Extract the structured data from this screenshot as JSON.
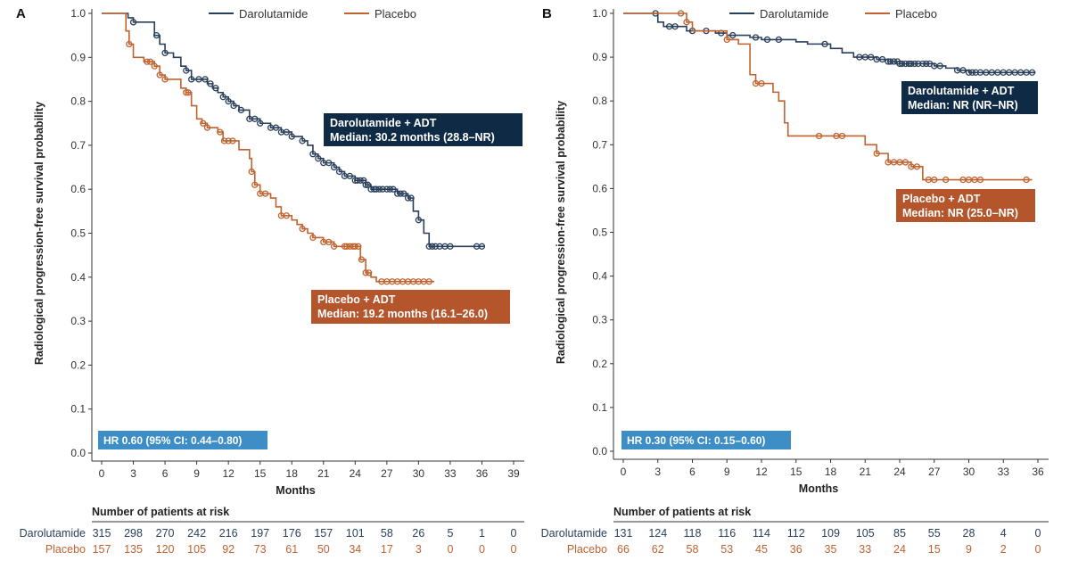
{
  "colors": {
    "darolutamide": "#2a3f5a",
    "placebo": "#c0622f",
    "dark_box": "#0f2a45",
    "placebo_box": "#b4552b",
    "hr_box": "#3d8dc7",
    "axis": "#333333"
  },
  "common": {
    "ylabel": "Radiological progression-free survival probability",
    "xlabel": "Months",
    "risk_header": "Number of patients at risk",
    "legend": [
      {
        "label": "Darolutamide",
        "series": "darolutamide"
      },
      {
        "label": "Placebo",
        "series": "placebo"
      }
    ],
    "yticks": [
      0,
      0.1,
      0.2,
      0.3,
      0.4,
      0.5,
      0.6,
      0.7,
      0.8,
      0.9,
      1.0
    ],
    "ytick_labels": [
      "0.0",
      "0.1",
      "0.2",
      "0.3",
      "0.4",
      "0.5",
      "0.6",
      "0.7",
      "0.8",
      "0.9",
      "1.0"
    ]
  },
  "chart_data": [
    {
      "type": "line",
      "subtype": "kaplan-meier step",
      "panel_label": "A",
      "xlabel": "Months",
      "ylabel": "Radiological progression-free survival probability",
      "xlim": [
        0,
        39
      ],
      "ylim": [
        0,
        1.0
      ],
      "xticks": [
        0,
        3,
        6,
        9,
        12,
        15,
        18,
        21,
        24,
        27,
        30,
        33,
        36,
        39
      ],
      "legend_position": "top-center",
      "series": [
        {
          "name": "Darolutamide",
          "steps": [
            [
              0,
              1.0
            ],
            [
              2.5,
              0.99
            ],
            [
              3,
              0.98
            ],
            [
              5,
              0.95
            ],
            [
              5.5,
              0.93
            ],
            [
              6,
              0.91
            ],
            [
              6.8,
              0.9
            ],
            [
              7.5,
              0.88
            ],
            [
              8,
              0.87
            ],
            [
              8.5,
              0.85
            ],
            [
              9,
              0.85
            ],
            [
              10,
              0.84
            ],
            [
              10.5,
              0.83
            ],
            [
              11,
              0.82
            ],
            [
              11.5,
              0.81
            ],
            [
              12,
              0.8
            ],
            [
              12.5,
              0.79
            ],
            [
              13,
              0.78
            ],
            [
              14,
              0.76
            ],
            [
              15,
              0.75
            ],
            [
              16,
              0.74
            ],
            [
              17,
              0.73
            ],
            [
              18,
              0.72
            ],
            [
              19,
              0.71
            ],
            [
              19.5,
              0.7
            ],
            [
              20,
              0.68
            ],
            [
              20.5,
              0.67
            ],
            [
              21,
              0.66
            ],
            [
              22,
              0.65
            ],
            [
              22.5,
              0.64
            ],
            [
              23,
              0.63
            ],
            [
              24,
              0.62
            ],
            [
              25,
              0.61
            ],
            [
              25.5,
              0.6
            ],
            [
              28,
              0.59
            ],
            [
              29,
              0.58
            ],
            [
              29.5,
              0.55
            ],
            [
              30,
              0.53
            ],
            [
              30.5,
              0.5
            ],
            [
              31,
              0.47
            ]
          ],
          "end": 36.2,
          "censor": [
            3,
            5.2,
            6,
            8,
            8.5,
            9.2,
            9.8,
            10.3,
            10.8,
            11.5,
            12,
            12.5,
            13.2,
            14,
            14.5,
            15,
            16,
            16.5,
            17,
            17.5,
            18,
            19,
            20,
            20.5,
            21,
            21.5,
            22,
            22.5,
            23,
            23.5,
            24,
            24.2,
            24.5,
            24.8,
            25,
            25.2,
            25.5,
            25.8,
            26,
            26.3,
            26.6,
            27,
            27.3,
            27.6,
            28,
            28.3,
            28.6,
            29,
            29.3,
            30,
            31,
            31.3,
            31.6,
            32,
            32.5,
            33,
            35.5,
            36
          ]
        },
        {
          "name": "Placebo",
          "steps": [
            [
              0,
              1.0
            ],
            [
              2.3,
              0.96
            ],
            [
              2.6,
              0.93
            ],
            [
              3,
              0.9
            ],
            [
              4,
              0.89
            ],
            [
              5,
              0.88
            ],
            [
              5.5,
              0.86
            ],
            [
              6,
              0.85
            ],
            [
              7.5,
              0.83
            ],
            [
              8,
              0.82
            ],
            [
              8.5,
              0.79
            ],
            [
              9,
              0.76
            ],
            [
              9.5,
              0.75
            ],
            [
              10,
              0.74
            ],
            [
              11,
              0.73
            ],
            [
              11.5,
              0.71
            ],
            [
              12,
              0.71
            ],
            [
              13,
              0.69
            ],
            [
              14,
              0.67
            ],
            [
              14.2,
              0.64
            ],
            [
              14.5,
              0.61
            ],
            [
              15,
              0.59
            ],
            [
              16,
              0.58
            ],
            [
              16.5,
              0.56
            ],
            [
              17,
              0.54
            ],
            [
              18,
              0.53
            ],
            [
              18.5,
              0.52
            ],
            [
              19,
              0.51
            ],
            [
              19.5,
              0.5
            ],
            [
              20,
              0.49
            ],
            [
              21,
              0.48
            ],
            [
              22,
              0.47
            ],
            [
              23,
              0.47
            ],
            [
              24.5,
              0.44
            ],
            [
              25,
              0.41
            ],
            [
              25.5,
              0.4
            ],
            [
              26,
              0.39
            ]
          ],
          "end": 31.5,
          "censor": [
            2.6,
            4.3,
            4.6,
            5,
            5.5,
            6,
            8,
            8.2,
            9.6,
            10,
            11.2,
            11.6,
            12,
            12.4,
            14.2,
            14.5,
            15,
            15.5,
            17,
            17.5,
            19,
            20,
            21,
            21.5,
            22,
            23,
            23.2,
            23.5,
            23.8,
            24,
            24.3,
            24.6,
            25,
            25.3,
            26.5,
            27,
            27.5,
            28,
            28.5,
            29,
            29.5,
            30,
            30.5,
            31
          ]
        }
      ],
      "annotations": [
        {
          "line1": "Darolutamide + ADT",
          "line2": "Median: 30.2 months (28.8–NR)",
          "series": "darolutamide"
        },
        {
          "line1": "Placebo + ADT",
          "line2": "Median: 19.2 months (16.1–26.0)",
          "series": "placebo"
        },
        {
          "line1": "HR 0.60 (95% CI: 0.44–0.80)",
          "series": "hr"
        }
      ],
      "at_risk": {
        "Darolutamide": [
          "315",
          "298",
          "270",
          "242",
          "216",
          "197",
          "176",
          "157",
          "101",
          "58",
          "26",
          "5",
          "1",
          "0"
        ],
        "Placebo": [
          "157",
          "135",
          "120",
          "105",
          "92",
          "73",
          "61",
          "50",
          "34",
          "17",
          "3",
          "0",
          "0",
          "0"
        ]
      }
    },
    {
      "type": "line",
      "subtype": "kaplan-meier step",
      "panel_label": "B",
      "xlabel": "Months",
      "ylabel": "Radiological progression-free survival probability",
      "xlim": [
        0,
        36
      ],
      "ylim": [
        0,
        1.0
      ],
      "xticks": [
        0,
        3,
        6,
        9,
        12,
        15,
        18,
        21,
        24,
        27,
        30,
        33,
        36
      ],
      "legend_position": "top-center",
      "series": [
        {
          "name": "Darolutamide",
          "steps": [
            [
              0,
              1.0
            ],
            [
              3,
              0.98
            ],
            [
              3.5,
              0.97
            ],
            [
              5.5,
              0.96
            ],
            [
              8,
              0.955
            ],
            [
              9,
              0.95
            ],
            [
              11,
              0.945
            ],
            [
              12,
              0.94
            ],
            [
              15,
              0.935
            ],
            [
              16,
              0.93
            ],
            [
              18,
              0.92
            ],
            [
              19,
              0.91
            ],
            [
              20,
              0.9
            ],
            [
              22,
              0.895
            ],
            [
              23,
              0.89
            ],
            [
              24,
              0.885
            ],
            [
              27,
              0.88
            ],
            [
              28,
              0.875
            ],
            [
              29,
              0.87
            ],
            [
              30,
              0.865
            ]
          ],
          "end": 35.8,
          "censor": [
            2.8,
            4,
            4.5,
            6,
            7.2,
            8.5,
            9.5,
            11.5,
            12.5,
            13.5,
            17.5,
            20.5,
            21,
            21.5,
            22,
            22.5,
            23,
            23.2,
            23.5,
            23.8,
            24,
            24.2,
            24.5,
            24.8,
            25,
            25.3,
            25.6,
            26,
            26.3,
            26.6,
            27,
            27.5,
            29,
            29.5,
            30,
            30.3,
            30.6,
            31,
            31.5,
            32,
            32.5,
            33,
            33.5,
            34,
            34.5,
            35,
            35.5
          ]
        },
        {
          "name": "Placebo",
          "steps": [
            [
              0,
              1.0
            ],
            [
              5.5,
              0.98
            ],
            [
              6,
              0.96
            ],
            [
              8,
              0.96
            ],
            [
              9,
              0.94
            ],
            [
              10,
              0.93
            ],
            [
              11,
              0.86
            ],
            [
              11.5,
              0.84
            ],
            [
              12,
              0.84
            ],
            [
              13,
              0.82
            ],
            [
              13.5,
              0.8
            ],
            [
              14,
              0.75
            ],
            [
              14.3,
              0.72
            ],
            [
              21,
              0.7
            ],
            [
              22,
              0.68
            ],
            [
              23,
              0.66
            ],
            [
              25,
              0.65
            ],
            [
              26,
              0.62
            ]
          ],
          "end": 35.5,
          "censor": [
            5,
            5.5,
            9,
            11.5,
            12,
            17,
            18.5,
            19,
            22,
            23,
            23.5,
            24,
            24.5,
            25,
            25.5,
            26.5,
            27,
            28,
            29.5,
            30,
            30.5,
            31,
            35
          ]
        }
      ],
      "annotations": [
        {
          "line1": "Darolutamide + ADT",
          "line2": "Median: NR (NR–NR)",
          "series": "darolutamide"
        },
        {
          "line1": "Placebo + ADT",
          "line2": "Median: NR (25.0–NR)",
          "series": "placebo"
        },
        {
          "line1": "HR 0.30 (95% CI: 0.15–0.60)",
          "series": "hr"
        }
      ],
      "at_risk": {
        "Darolutamide": [
          "131",
          "124",
          "118",
          "116",
          "114",
          "112",
          "109",
          "105",
          "85",
          "55",
          "28",
          "4",
          "0"
        ],
        "Placebo": [
          "66",
          "62",
          "58",
          "53",
          "45",
          "36",
          "35",
          "33",
          "24",
          "15",
          "9",
          "2",
          "0"
        ]
      }
    }
  ]
}
